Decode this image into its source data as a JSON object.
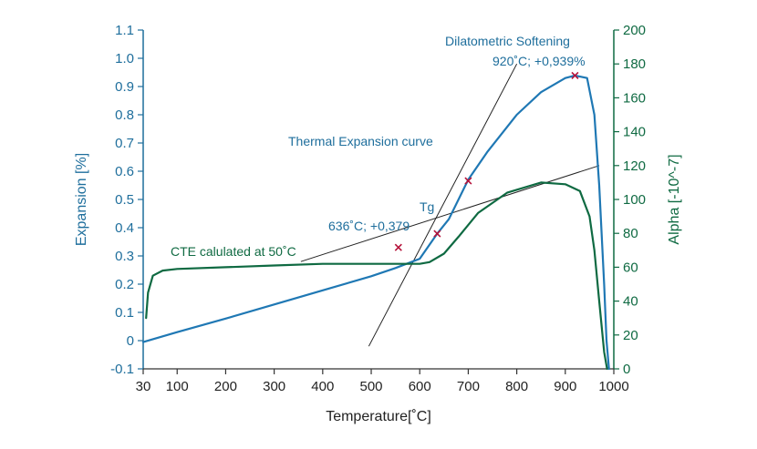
{
  "colors": {
    "expansion": "#1f78b4",
    "alpha": "#0f6a42",
    "left_axis": "#1e6e9c",
    "right_axis": "#0f6a42",
    "bottom_axis": "#333333",
    "construction": "#222222",
    "marker": "#b5123a"
  },
  "chart_data": {
    "type": "line",
    "xlabel": "Temperature[˚C]",
    "ylabel": "Expansion [%]",
    "y2label": "Alpha [-10^-7]",
    "xlim": [
      30,
      1000
    ],
    "ylim": [
      -0.1,
      1.1
    ],
    "y2lim": [
      0,
      200
    ],
    "xticks": [
      30,
      100,
      200,
      300,
      400,
      500,
      600,
      700,
      800,
      900,
      1000
    ],
    "yticks": [
      -0.1,
      0,
      0.1,
      0.2,
      0.3,
      0.4,
      0.5,
      0.6,
      0.7,
      0.8,
      0.9,
      1.0,
      1.1
    ],
    "y2ticks": [
      0,
      20,
      40,
      60,
      80,
      100,
      120,
      140,
      160,
      180,
      200
    ],
    "grid": false,
    "series": [
      {
        "axis": "left",
        "points": [
          [
            30,
            -0.005
          ],
          [
            100,
            0.03
          ],
          [
            200,
            0.078
          ],
          [
            300,
            0.128
          ],
          [
            400,
            0.178
          ],
          [
            500,
            0.228
          ],
          [
            550,
            0.257
          ],
          [
            600,
            0.29
          ],
          [
            636,
            0.379
          ],
          [
            660,
            0.43
          ],
          [
            700,
            0.57
          ],
          [
            740,
            0.67
          ],
          [
            800,
            0.8
          ],
          [
            850,
            0.88
          ],
          [
            900,
            0.93
          ],
          [
            920,
            0.939
          ],
          [
            945,
            0.93
          ],
          [
            960,
            0.8
          ],
          [
            970,
            0.55
          ],
          [
            980,
            0.2
          ],
          [
            985,
            0.0
          ],
          [
            990,
            -0.1
          ]
        ]
      },
      {
        "axis": "right",
        "points": [
          [
            36,
            30
          ],
          [
            40,
            45
          ],
          [
            50,
            55
          ],
          [
            70,
            58
          ],
          [
            100,
            59
          ],
          [
            200,
            60
          ],
          [
            300,
            61
          ],
          [
            400,
            62
          ],
          [
            500,
            62
          ],
          [
            600,
            62
          ],
          [
            620,
            63
          ],
          [
            650,
            68
          ],
          [
            680,
            78
          ],
          [
            720,
            92
          ],
          [
            780,
            104
          ],
          [
            850,
            110
          ],
          [
            900,
            109
          ],
          [
            930,
            105
          ],
          [
            950,
            90
          ],
          [
            960,
            70
          ],
          [
            970,
            40
          ],
          [
            980,
            10
          ],
          [
            986,
            0
          ]
        ]
      }
    ],
    "construction_lines": [
      [
        [
          495,
          -0.02
        ],
        [
          800,
          0.98
        ]
      ],
      [
        [
          355,
          0.28
        ],
        [
          970,
          0.62
        ]
      ]
    ],
    "markers": [
      {
        "x": 556,
        "y": 0.33
      },
      {
        "x": 636,
        "y": 0.379
      },
      {
        "x": 700,
        "y": 0.566
      },
      {
        "x": 920,
        "y": 0.939
      }
    ],
    "annotations": {
      "softening_title": "Dilatometric Softening",
      "softening_value": "920˚C; +0,939%",
      "curve_label": "Thermal Expansion curve",
      "tg_title": "Tg",
      "tg_value": "636˚C; +0,379",
      "cte_label": "CTE calulated at 50˚C"
    }
  }
}
